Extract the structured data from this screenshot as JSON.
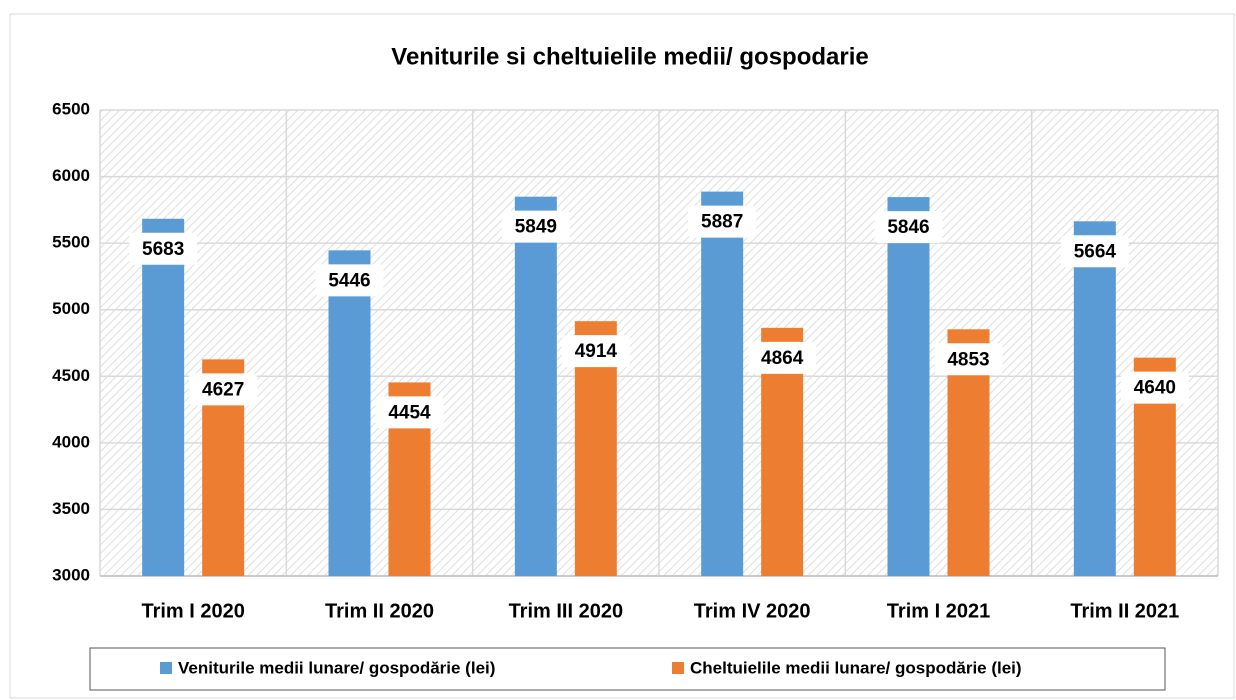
{
  "chart_data": {
    "type": "bar",
    "title": "Veniturile si cheltuielile medii/ gospodarie",
    "categories": [
      "Trim I 2020",
      "Trim II 2020",
      "Trim III 2020",
      "Trim IV 2020",
      "Trim I 2021",
      "Trim II 2021"
    ],
    "series": [
      {
        "name": "Veniturile medii lunare/ gospodărie (lei)",
        "color": "#5b9bd5",
        "values": [
          5683,
          5446,
          5849,
          5887,
          5846,
          5664
        ]
      },
      {
        "name": "Cheltuielile medii lunare/ gospodărie (lei)",
        "color": "#ed7d31",
        "values": [
          4627,
          4454,
          4914,
          4864,
          4853,
          4640
        ]
      }
    ],
    "ylim": [
      3000,
      6500
    ],
    "yticks": [
      3000,
      3500,
      4000,
      4500,
      5000,
      5500,
      6000,
      6500
    ],
    "grid": true,
    "legend": "bottom"
  }
}
